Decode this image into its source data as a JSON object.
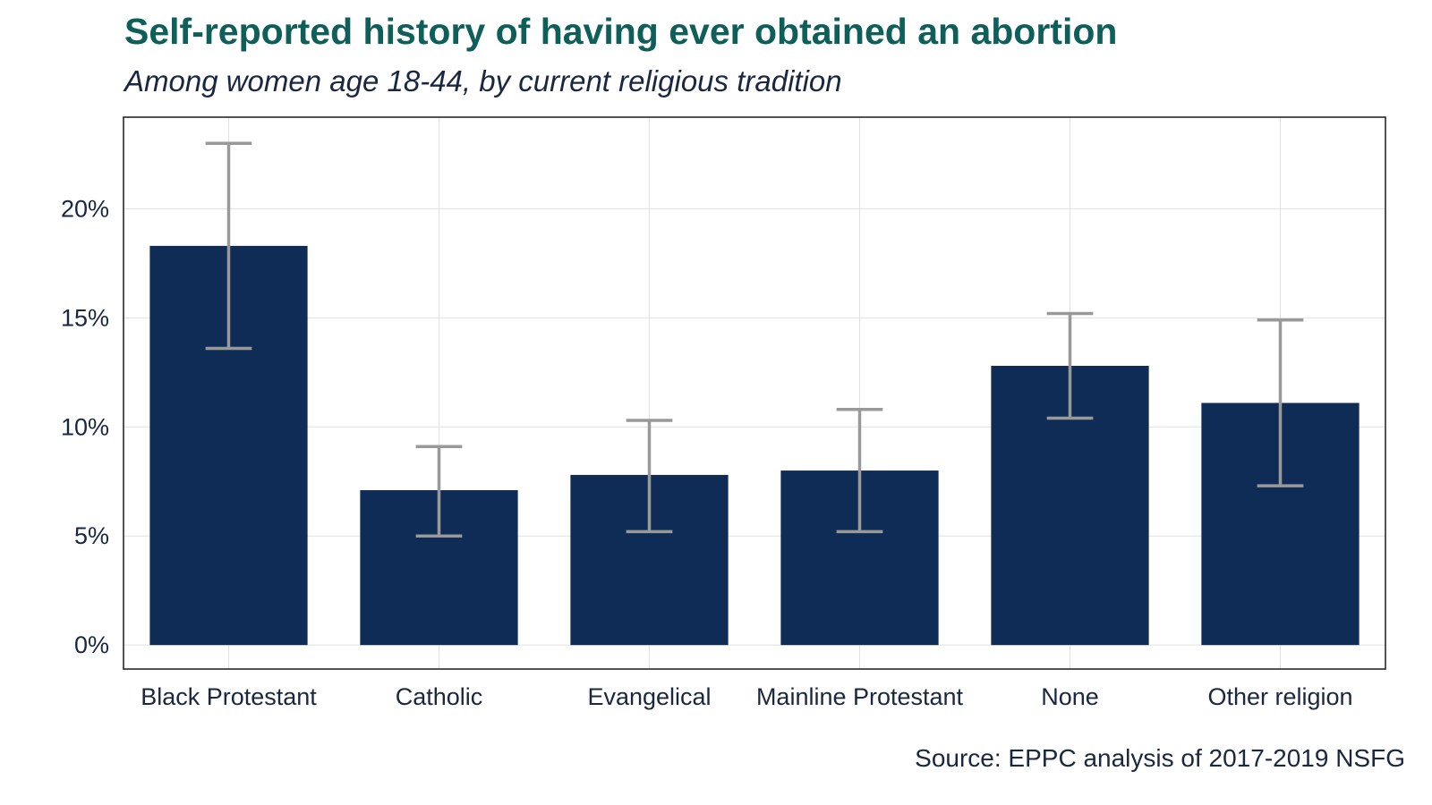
{
  "chart_data": {
    "type": "bar",
    "title": "Self-reported history of having ever obtained an abortion",
    "subtitle": "Among women age 18-44, by current religious tradition",
    "source": "Source: EPPC analysis of 2017-2019 NSFG",
    "xlabel": "",
    "ylabel": "",
    "categories": [
      "Black Protestant",
      "Catholic",
      "Evangelical",
      "Mainline Protestant",
      "None",
      "Other religion"
    ],
    "values": [
      18.3,
      7.1,
      7.8,
      8.0,
      12.8,
      11.1
    ],
    "error_low": [
      13.6,
      5.0,
      5.2,
      5.2,
      10.4,
      7.3
    ],
    "error_high": [
      23.0,
      9.1,
      10.3,
      10.8,
      15.2,
      14.9
    ],
    "ylim": [
      -1.1,
      24.2
    ],
    "yticks": [
      0,
      5,
      10,
      15,
      20
    ],
    "ytick_labels": [
      "0%",
      "5%",
      "10%",
      "15%",
      "20%"
    ],
    "grid": true,
    "colors": {
      "bar": "#0e2c55",
      "errorbar": "#999999",
      "grid": "#e0e0e0",
      "title": "#0e5e5a",
      "text": "#1a2740"
    }
  }
}
